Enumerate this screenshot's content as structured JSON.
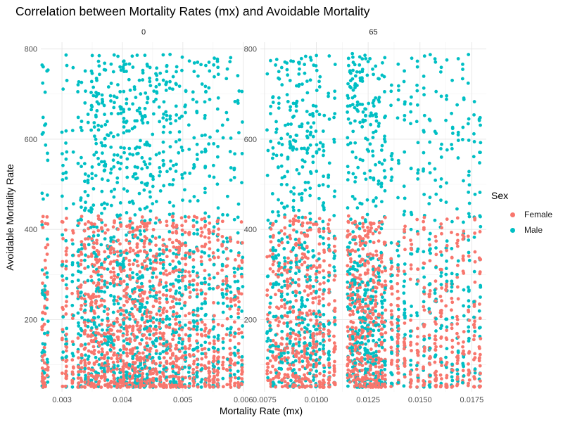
{
  "chart_data": {
    "type": "scatter",
    "title": "Correlation between Mortality Rates (mx) and Avoidable Mortality",
    "xlabel": "Mortality Rate (mx)",
    "ylabel": "Avoidable Mortality Rate",
    "legend": {
      "title": "Sex",
      "placement": "right"
    },
    "grid": true,
    "series": [
      {
        "name": "Female",
        "color": "#F8766D"
      },
      {
        "name": "Male",
        "color": "#00BFC4"
      }
    ],
    "facets": [
      {
        "label": "0",
        "xlim": [
          0.00265,
          0.00605
        ],
        "ylim": [
          40,
          815
        ],
        "x_ticks": [
          0.003,
          0.004,
          0.005,
          0.006
        ],
        "x_tick_labels": [
          "0.003",
          "0.004",
          "0.005",
          "0.006"
        ],
        "y_ticks": [
          200,
          400,
          600,
          800
        ],
        "y_tick_labels": [
          "200",
          "400",
          "600",
          "800"
        ],
        "female_y_range": [
          50,
          430
        ],
        "male_y_range": [
          50,
          790
        ],
        "x_columns": [
          0.00268,
          0.00272,
          0.00276,
          0.00301,
          0.00307,
          0.00318,
          0.00327,
          0.00332,
          0.00338,
          0.00344,
          0.00349,
          0.00353,
          0.00357,
          0.00361,
          0.00366,
          0.00371,
          0.00376,
          0.00381,
          0.00386,
          0.00392,
          0.00397,
          0.00402,
          0.00407,
          0.00412,
          0.00417,
          0.00421,
          0.00425,
          0.00429,
          0.00433,
          0.00437,
          0.00441,
          0.00446,
          0.00451,
          0.00456,
          0.00462,
          0.00468,
          0.00473,
          0.00479,
          0.00484,
          0.00489,
          0.00494,
          0.00499,
          0.00504,
          0.00511,
          0.00518,
          0.00524,
          0.00531,
          0.00537,
          0.00544,
          0.00551,
          0.00558,
          0.00566,
          0.00573,
          0.00579,
          0.00586,
          0.00592,
          0.00598
        ]
      },
      {
        "label": "65",
        "xlim": [
          0.0073,
          0.0182
        ],
        "ylim": [
          40,
          815
        ],
        "x_ticks": [
          0.0075,
          0.01,
          0.0125,
          0.015,
          0.0175
        ],
        "x_tick_labels": [
          "0.0075",
          "0.0100",
          "0.0125",
          "0.0150",
          "0.0175"
        ],
        "y_ticks": [
          200,
          400,
          600,
          800
        ],
        "y_tick_labels": [
          "200",
          "400",
          "600",
          "800"
        ],
        "female_y_range": [
          50,
          430
        ],
        "male_y_range": [
          50,
          790
        ],
        "x_columns": [
          0.00765,
          0.00778,
          0.00792,
          0.00806,
          0.00819,
          0.00833,
          0.00847,
          0.00861,
          0.00875,
          0.00889,
          0.00903,
          0.00917,
          0.00931,
          0.00945,
          0.00958,
          0.00972,
          0.00986,
          0.01,
          0.01016,
          0.01035,
          0.01061,
          0.01088,
          0.01153,
          0.01165,
          0.01176,
          0.01188,
          0.01199,
          0.01211,
          0.01223,
          0.01236,
          0.01249,
          0.01262,
          0.01275,
          0.01288,
          0.01302,
          0.01316,
          0.01331,
          0.01363,
          0.01394,
          0.01425,
          0.01457,
          0.01488,
          0.01519,
          0.01547,
          0.01575,
          0.01602,
          0.01628,
          0.01655,
          0.01682,
          0.01709,
          0.01736,
          0.01763,
          0.01789
        ]
      }
    ]
  }
}
